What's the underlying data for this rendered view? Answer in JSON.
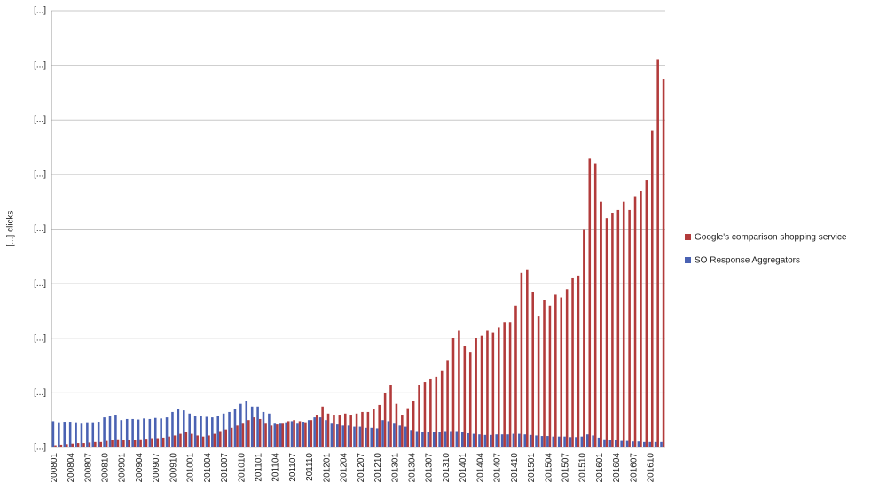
{
  "chart_data": {
    "type": "bar",
    "y_label": "[...] clicks",
    "categories": [
      "200801",
      null,
      null,
      "200804",
      null,
      null,
      "200807",
      null,
      null,
      "200810",
      null,
      null,
      "200901",
      null,
      null,
      "200904",
      null,
      null,
      "200907",
      null,
      null,
      "200910",
      null,
      null,
      "201001",
      null,
      null,
      "201004",
      null,
      null,
      "201007",
      null,
      null,
      "201010",
      null,
      null,
      "201101",
      null,
      null,
      "201104",
      null,
      null,
      "201107",
      null,
      null,
      "201110",
      null,
      null,
      "201201",
      null,
      null,
      "201204",
      null,
      null,
      "201207",
      null,
      null,
      "201210",
      null,
      null,
      "201301",
      null,
      null,
      "201304",
      null,
      null,
      "201307",
      null,
      null,
      "201310",
      null,
      null,
      "201401",
      null,
      null,
      "201404",
      null,
      null,
      "201407",
      null,
      null,
      "201410",
      null,
      null,
      "201501",
      null,
      null,
      "201504",
      null,
      null,
      "201507",
      null,
      null,
      "201510",
      null,
      null,
      "201601",
      null,
      null,
      "201604",
      null,
      null,
      "201607",
      null,
      null,
      "201610",
      null,
      null
    ],
    "series": [
      {
        "name": "Google's comparison shopping service",
        "color": "#b23b3b",
        "values": [
          0.04,
          0.05,
          0.06,
          0.07,
          0.08,
          0.08,
          0.09,
          0.1,
          0.1,
          0.12,
          0.13,
          0.15,
          0.14,
          0.13,
          0.14,
          0.15,
          0.16,
          0.17,
          0.17,
          0.18,
          0.2,
          0.22,
          0.25,
          0.28,
          0.25,
          0.22,
          0.2,
          0.22,
          0.25,
          0.3,
          0.33,
          0.36,
          0.4,
          0.45,
          0.5,
          0.55,
          0.52,
          0.45,
          0.4,
          0.42,
          0.45,
          0.48,
          0.5,
          0.48,
          0.46,
          0.5,
          0.6,
          0.75,
          0.62,
          0.6,
          0.6,
          0.62,
          0.6,
          0.62,
          0.65,
          0.65,
          0.7,
          0.78,
          1.0,
          1.15,
          0.8,
          0.6,
          0.72,
          0.85,
          1.15,
          1.2,
          1.25,
          1.3,
          1.4,
          1.6,
          2.0,
          2.15,
          1.85,
          1.75,
          2.0,
          2.05,
          2.15,
          2.1,
          2.2,
          2.3,
          2.3,
          2.6,
          3.2,
          3.25,
          2.85,
          2.4,
          2.7,
          2.6,
          2.8,
          2.75,
          2.9,
          3.1,
          3.15,
          4.0,
          5.3,
          5.2,
          4.5,
          4.2,
          4.3,
          4.35,
          4.5,
          4.35,
          4.6,
          4.7,
          4.9,
          5.8,
          7.1,
          6.75
        ]
      },
      {
        "name": "SO Response Aggregators",
        "color": "#4a62b3",
        "values": [
          0.48,
          0.46,
          0.47,
          0.47,
          0.46,
          0.45,
          0.46,
          0.46,
          0.47,
          0.55,
          0.58,
          0.6,
          0.5,
          0.52,
          0.52,
          0.51,
          0.53,
          0.52,
          0.54,
          0.53,
          0.55,
          0.65,
          0.7,
          0.68,
          0.62,
          0.58,
          0.57,
          0.56,
          0.55,
          0.58,
          0.62,
          0.65,
          0.7,
          0.8,
          0.85,
          0.75,
          0.75,
          0.65,
          0.62,
          0.45,
          0.45,
          0.46,
          0.48,
          0.45,
          0.47,
          0.5,
          0.55,
          0.55,
          0.5,
          0.45,
          0.42,
          0.4,
          0.4,
          0.38,
          0.38,
          0.36,
          0.36,
          0.35,
          0.5,
          0.48,
          0.45,
          0.4,
          0.38,
          0.32,
          0.3,
          0.29,
          0.28,
          0.28,
          0.28,
          0.3,
          0.3,
          0.3,
          0.28,
          0.26,
          0.25,
          0.24,
          0.23,
          0.23,
          0.24,
          0.24,
          0.24,
          0.25,
          0.25,
          0.24,
          0.23,
          0.22,
          0.21,
          0.21,
          0.2,
          0.2,
          0.2,
          0.19,
          0.19,
          0.2,
          0.24,
          0.22,
          0.18,
          0.15,
          0.14,
          0.13,
          0.12,
          0.12,
          0.11,
          0.11,
          0.1,
          0.1,
          0.1,
          0.1
        ]
      }
    ],
    "ylim": [
      0,
      8
    ],
    "yticks": [
      {
        "value": 0,
        "label": "[...]"
      },
      {
        "value": 1,
        "label": "[...]"
      },
      {
        "value": 2,
        "label": "[...]"
      },
      {
        "value": 3,
        "label": "[...]"
      },
      {
        "value": 4,
        "label": "[...]"
      },
      {
        "value": 5,
        "label": "[...]"
      },
      {
        "value": 6,
        "label": "[...]"
      },
      {
        "value": 7,
        "label": "[...]"
      },
      {
        "value": 8,
        "label": "[...]"
      }
    ],
    "grid": true,
    "legend": "right"
  }
}
